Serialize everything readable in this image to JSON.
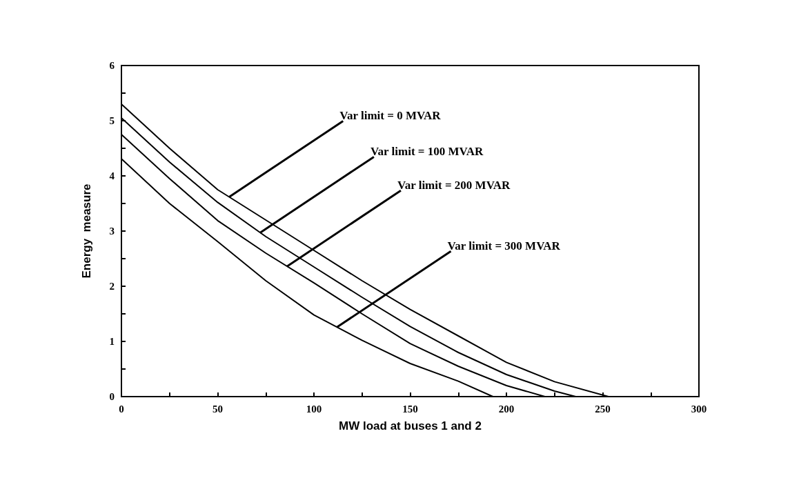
{
  "chart_data": {
    "type": "line",
    "xlabel": "MW load at buses 1 and 2",
    "ylabel": "Energy  measure",
    "series": [
      {
        "color": "#000000",
        "x": [
          0,
          25,
          50,
          75,
          100,
          125,
          150,
          175,
          200,
          225,
          253
        ],
        "values": [
          5.3,
          4.5,
          3.75,
          3.2,
          2.65,
          2.1,
          1.58,
          1.1,
          0.62,
          0.27,
          0
        ]
      },
      {
        "color": "#000000",
        "x": [
          0,
          25,
          50,
          75,
          100,
          125,
          150,
          175,
          200,
          225,
          236
        ],
        "values": [
          5.05,
          4.25,
          3.52,
          2.9,
          2.35,
          1.8,
          1.27,
          0.8,
          0.4,
          0.1,
          0
        ]
      },
      {
        "color": "#000000",
        "x": [
          0,
          25,
          50,
          75,
          100,
          125,
          150,
          175,
          200,
          220
        ],
        "values": [
          4.75,
          3.95,
          3.19,
          2.6,
          2.06,
          1.5,
          0.96,
          0.55,
          0.2,
          0
        ]
      },
      {
        "color": "#000000",
        "x": [
          0,
          25,
          50,
          75,
          100,
          125,
          150,
          175,
          193
        ],
        "values": [
          4.31,
          3.5,
          2.81,
          2.1,
          1.48,
          1.02,
          0.6,
          0.28,
          0
        ]
      }
    ],
    "xlim": [
      0,
      300
    ],
    "xticks": [
      0,
      {
        "value": 25,
        "label": null
      },
      50,
      {
        "value": 75,
        "label": null
      },
      100,
      {
        "value": 125,
        "label": null
      },
      150,
      {
        "value": 175,
        "label": null
      },
      200,
      {
        "value": 225,
        "label": null
      },
      250,
      {
        "value": 275,
        "label": null
      },
      300
    ],
    "ylim": [
      0,
      6
    ],
    "yticks": [
      0,
      {
        "value": 0.5,
        "label": null
      },
      1,
      {
        "value": 1.5,
        "label": null
      },
      2,
      {
        "value": 2.5,
        "label": null
      },
      3,
      {
        "value": 3.5,
        "label": null
      },
      4,
      {
        "value": 4.5,
        "label": null
      },
      5,
      {
        "value": 5.5,
        "label": null
      },
      6
    ],
    "annotations": [
      {
        "text": "Var limit = 0 MVAR",
        "x": 56,
        "y": 3.62
      },
      {
        "text": "Var limit = 100 MVAR",
        "x": 72,
        "y": 2.97
      },
      {
        "text": "Var limit = 200 MVAR",
        "x": 86,
        "y": 2.36
      },
      {
        "text": "Var limit = 300 MVAR",
        "x": 112,
        "y": 1.26
      }
    ],
    "grid": false,
    "marker": "none",
    "line_style": "solid"
  }
}
